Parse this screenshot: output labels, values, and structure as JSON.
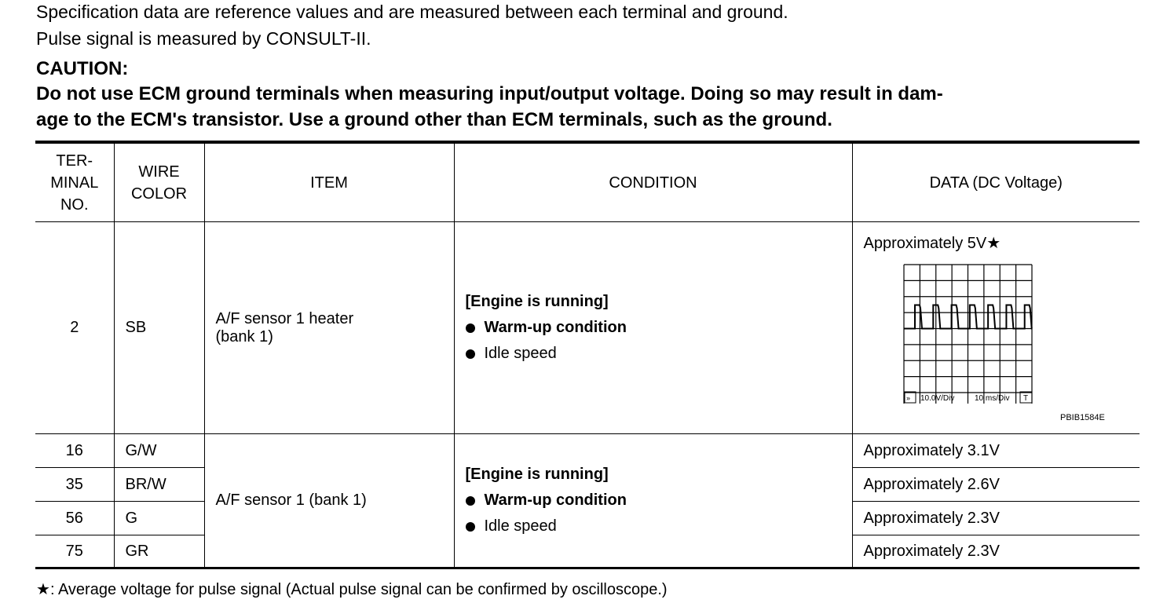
{
  "intro": [
    "Specification data are reference values and are measured between each terminal and ground.",
    "Pulse signal is measured by CONSULT-II."
  ],
  "caution": {
    "title": "CAUTION:",
    "lines": [
      "Do not use ECM ground terminals when measuring input/output voltage. Doing so may result in dam-",
      "age to the ECM's transistor. Use a ground other than ECM terminals, such as the ground."
    ]
  },
  "table": {
    "headers": {
      "terminal": [
        "TER-",
        "MINAL",
        "NO."
      ],
      "wire": [
        "WIRE",
        "COLOR"
      ],
      "item": "ITEM",
      "condition": "CONDITION",
      "data": "DATA (DC Voltage)"
    },
    "row1": {
      "terminal": "2",
      "wire": "SB",
      "item": [
        "A/F sensor 1 heater",
        "(bank 1)"
      ],
      "condition": {
        "heading": "[Engine is running]",
        "bullets": [
          "Warm-up condition",
          "Idle speed"
        ]
      },
      "data": "Approximately 5V",
      "star": "★",
      "scope": {
        "volt": "10.0V/Div",
        "time": "10 ms/Div",
        "trigger": "T",
        "arrow": "»",
        "figure_id": "PBIB1584E",
        "pulse_count": 7
      }
    },
    "group": {
      "item": "A/F sensor 1 (bank 1)",
      "condition": {
        "heading": "[Engine is running]",
        "bullets": [
          "Warm-up condition",
          "Idle speed"
        ]
      },
      "rows": [
        {
          "terminal": "16",
          "wire": "G/W",
          "data": "Approximately 3.1V"
        },
        {
          "terminal": "35",
          "wire": "BR/W",
          "data": "Approximately 2.6V"
        },
        {
          "terminal": "56",
          "wire": "G",
          "data": "Approximately 2.3V"
        },
        {
          "terminal": "75",
          "wire": "GR",
          "data": "Approximately 2.3V"
        }
      ]
    }
  },
  "footnote": {
    "star": "★",
    "text": ": Average voltage for pulse signal (Actual pulse signal can be confirmed by oscilloscope.)"
  }
}
